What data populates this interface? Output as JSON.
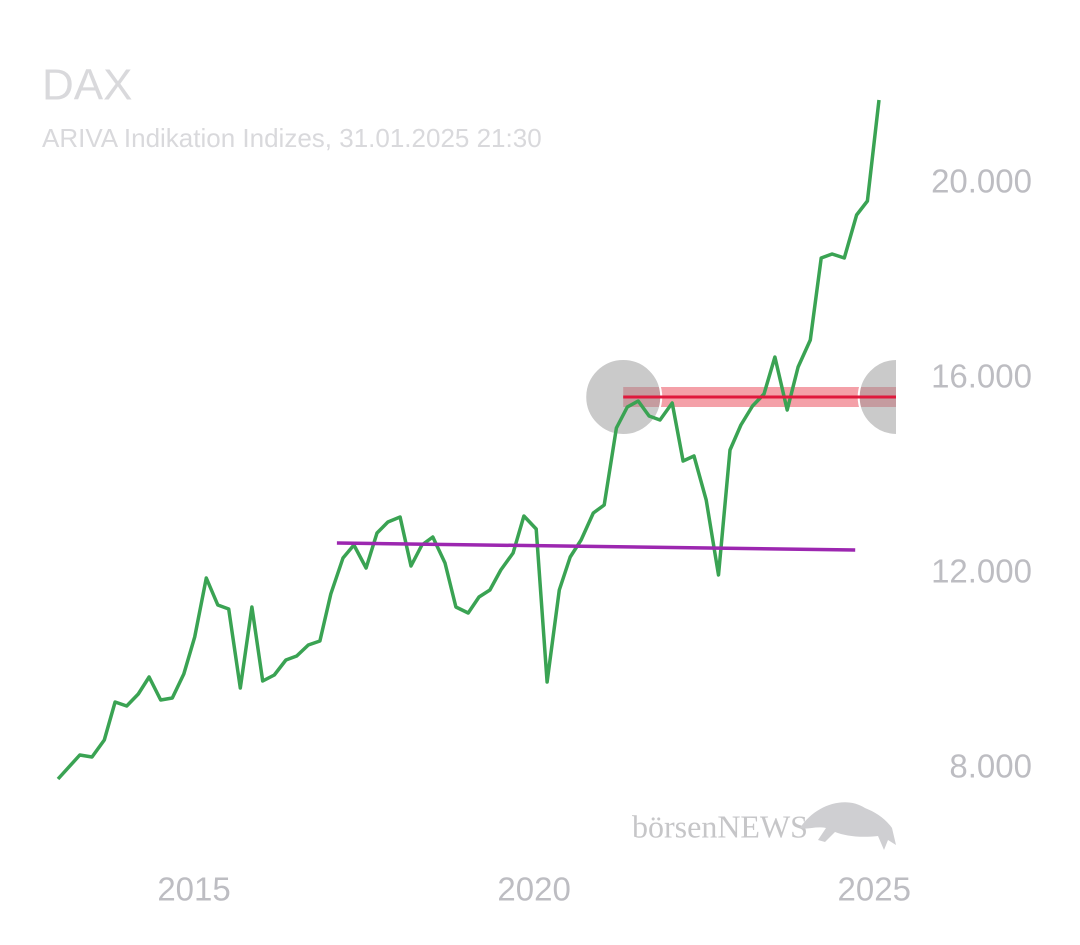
{
  "chart_data": {
    "type": "line",
    "title": "DAX",
    "subtitle": "ARIVA Indikation Indizes, 31.01.2025 21:30",
    "watermark": "börsenNEWS",
    "xlim": [
      2013.0,
      2025.07
    ],
    "ylim": [
      7000,
      22000
    ],
    "xticks": [
      2015,
      2020,
      2025
    ],
    "yticks": [
      {
        "value": 8000,
        "label": "8.000"
      },
      {
        "value": 12000,
        "label": "12.000"
      },
      {
        "value": 16000,
        "label": "16.000"
      },
      {
        "value": 20000,
        "label": "20.000"
      }
    ],
    "grid": false,
    "series": [
      {
        "name": "DAX",
        "color": "#3aa353",
        "x": [
          2013.0,
          2013.32,
          2013.5,
          2013.68,
          2013.84,
          2014.01,
          2014.18,
          2014.34,
          2014.51,
          2014.68,
          2014.85,
          2015.01,
          2015.18,
          2015.35,
          2015.51,
          2015.68,
          2015.85,
          2016.01,
          2016.18,
          2016.35,
          2016.51,
          2016.68,
          2016.85,
          2017.01,
          2017.19,
          2017.35,
          2017.53,
          2017.69,
          2017.85,
          2018.03,
          2018.19,
          2018.35,
          2018.51,
          2018.69,
          2018.85,
          2019.03,
          2019.19,
          2019.35,
          2019.51,
          2019.69,
          2019.85,
          2020.03,
          2020.19,
          2020.37,
          2020.53,
          2020.69,
          2020.87,
          2021.03,
          2021.21,
          2021.37,
          2021.53,
          2021.69,
          2021.85,
          2022.03,
          2022.19,
          2022.35,
          2022.53,
          2022.71,
          2022.88,
          2023.04,
          2023.21,
          2023.38,
          2023.54,
          2023.72,
          2023.88,
          2024.06,
          2024.22,
          2024.38,
          2024.56,
          2024.74,
          2024.9,
          2025.07
        ],
        "values": [
          7795,
          8287,
          8246,
          8595,
          9374,
          9292,
          9538,
          9887,
          9415,
          9456,
          9949,
          10708,
          11918,
          11364,
          11282,
          9662,
          11323,
          9805,
          9928,
          10236,
          10318,
          10544,
          10626,
          11590,
          12328,
          12595,
          12123,
          12841,
          13067,
          13169,
          12164,
          12595,
          12759,
          12226,
          11323,
          11200,
          11528,
          11672,
          12082,
          12431,
          13190,
          12923,
          9785,
          11672,
          12349,
          12697,
          13251,
          13415,
          14995,
          15426,
          15549,
          15241,
          15159,
          15508,
          14318,
          14421,
          13518,
          11979,
          14544,
          15056,
          15446,
          15692,
          16451,
          15364,
          16246,
          16800,
          18482,
          18564,
          18482,
          19364,
          19651,
          21723
        ]
      }
    ],
    "trendlines": [
      {
        "color": "#9c27b0",
        "x": [
          2017.1,
          2024.72
        ],
        "values": [
          12636,
          12492
        ]
      }
    ],
    "levels": [
      {
        "color": "#e0193c",
        "band_color": "#f4a0a8",
        "x": [
          2021.31,
          2025.33
        ],
        "values": [
          15631,
          15631
        ]
      }
    ]
  }
}
